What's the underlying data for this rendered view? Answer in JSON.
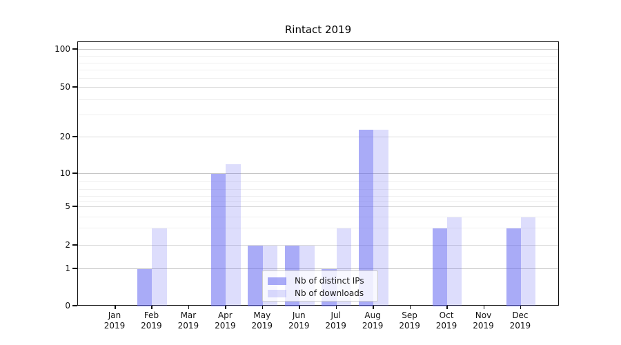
{
  "title": "Rintact 2019",
  "chart_data": {
    "type": "bar",
    "title": "Rintact 2019",
    "categories": [
      "Jan 2019",
      "Feb 2019",
      "Mar 2019",
      "Apr 2019",
      "May 2019",
      "Jun 2019",
      "Jul 2019",
      "Aug 2019",
      "Sep 2019",
      "Oct 2019",
      "Nov 2019",
      "Dec 2019"
    ],
    "series": [
      {
        "name": "Nb of distinct IPs",
        "color": "#6366f0",
        "opacity": 0.55,
        "values": [
          0,
          1,
          0,
          10,
          2,
          2,
          1,
          23,
          0,
          3,
          0,
          3
        ]
      },
      {
        "name": "Nb of downloads",
        "color": "#6366f0",
        "opacity": 0.22,
        "values": [
          0,
          3,
          0,
          12,
          2,
          2,
          3,
          23,
          0,
          4,
          0,
          4
        ]
      }
    ],
    "yscale": "symlog",
    "ytick_labels": [
      0,
      1,
      2,
      5,
      10,
      20,
      50,
      100
    ],
    "ylim": [
      0,
      110
    ],
    "grid": true,
    "legend_position": "lower center"
  },
  "legend": {
    "item1": "Nb of distinct IPs",
    "item2": "Nb of downloads"
  }
}
